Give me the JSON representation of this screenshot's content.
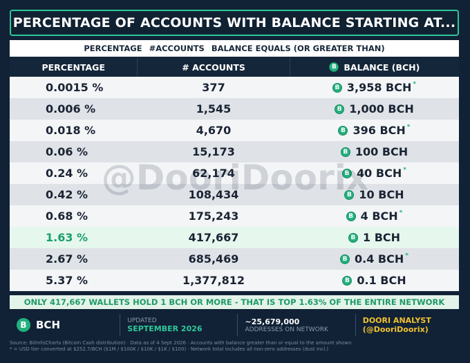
{
  "title": "PERCENTAGE OF ACCOUNTS WITH BALANCE STARTING AT...",
  "subtitle": {
    "a": "PERCENTAGE",
    "b": "#ACCOUNTS",
    "c": "BALANCE EQUALS (OR GREATER THAN)"
  },
  "headers": {
    "percentage": "PERCENTAGE",
    "accounts": "# ACCOUNTS",
    "balance": "BALANCE (BCH)"
  },
  "rows": [
    {
      "pct": "0.0015 %",
      "accounts": "377",
      "balance": "3,958 BCH"
    },
    {
      "pct": "0.006 %",
      "accounts": "1,545",
      "balance": "1,000 BCH"
    },
    {
      "pct": "0.018 %",
      "accounts": "4,670",
      "balance": "396 BCH"
    },
    {
      "pct": "0.06 %",
      "accounts": "15,173",
      "balance": "100 BCH"
    },
    {
      "pct": "0.24 %",
      "accounts": "62,174",
      "balance": "40 BCH"
    },
    {
      "pct": "0.42 %",
      "accounts": "108,434",
      "balance": "10 BCH"
    },
    {
      "pct": "0.68 %",
      "accounts": "175,243",
      "balance": "4 BCH"
    },
    {
      "pct": "1.63 %",
      "accounts": "417,667",
      "balance": "1 BCH"
    },
    {
      "pct": "2.67 %",
      "accounts": "685,469",
      "balance": "0.4 BCH"
    },
    {
      "pct": "5.37 %",
      "accounts": "1,377,812",
      "balance": "0.1 BCH"
    }
  ],
  "star_symbol": "*",
  "coin_symbol": "B",
  "watermark": "@DooriDoorix",
  "banner": "ONLY 417,667 WALLETS HOLD 1 BCH OR MORE  -  THAT IS TOP 1.63% OF THE ENTIRE NETWORK",
  "footer": {
    "brand": "BCH",
    "updated_label": "UPDATED",
    "updated_value": "SEPTEMBER 2026",
    "addresses_value": "~25,679,000",
    "addresses_label": "ADDRESSES ON NETWORK",
    "analyst_name": "DOORI ANALYST",
    "analyst_handle": "(@DooriDoorix)"
  },
  "fine_print": [
    "Source: BitInfoCharts (Bitcoin Cash distribution)  ·  Data as of 4 Sept 2026  ·  Accounts with balance greater than or equal to the amount shown.",
    "* = USD tier converted at $252.7/BCH ($1M / $100K / $10K / $1K / $100)  ·  Network total includes all non-zero addresses (dust incl.)"
  ],
  "colors": {
    "background": "#112236",
    "accent": "#2fc79a",
    "highlight_row": "#e6f7ee",
    "analyst": "#f2c230"
  }
}
